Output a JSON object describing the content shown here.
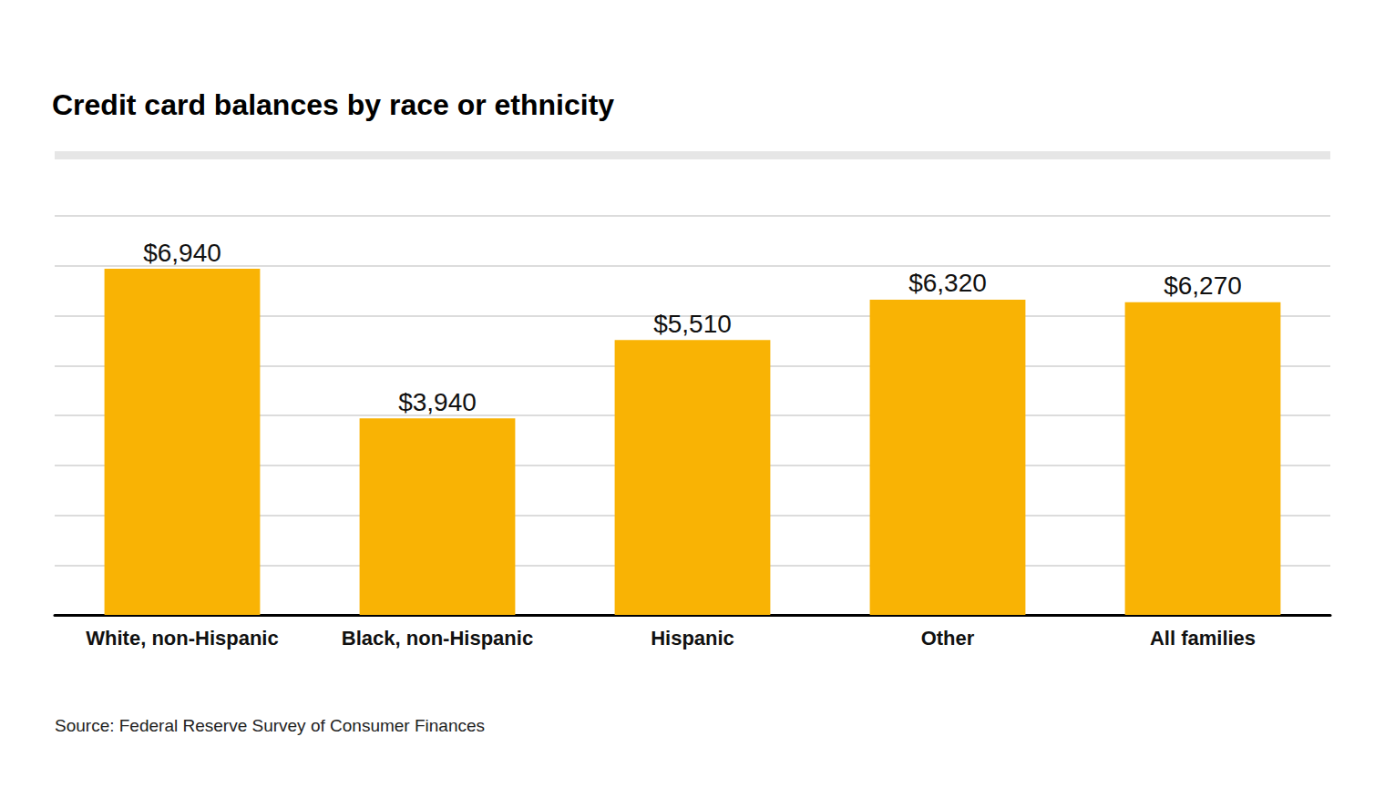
{
  "chart_data": {
    "type": "bar",
    "title": "Credit card balances by race or ethnicity",
    "categories": [
      "White, non-Hispanic",
      "Black, non-Hispanic",
      "Hispanic",
      "Other",
      "All families"
    ],
    "values": [
      6940,
      3940,
      5510,
      6320,
      6270
    ],
    "value_labels": [
      "$6,940",
      "$3,940",
      "$5,510",
      "$6,320",
      "$6,270"
    ],
    "color": "#f9b304",
    "ylim": [
      0,
      8000
    ],
    "yticks": [
      0,
      1000,
      2000,
      3000,
      4000,
      5000,
      6000,
      7000,
      8000
    ],
    "grid": true,
    "data_labels": true,
    "tick_labels": "x",
    "source": "Source: Federal Reserve Survey of Consumer Finances"
  }
}
